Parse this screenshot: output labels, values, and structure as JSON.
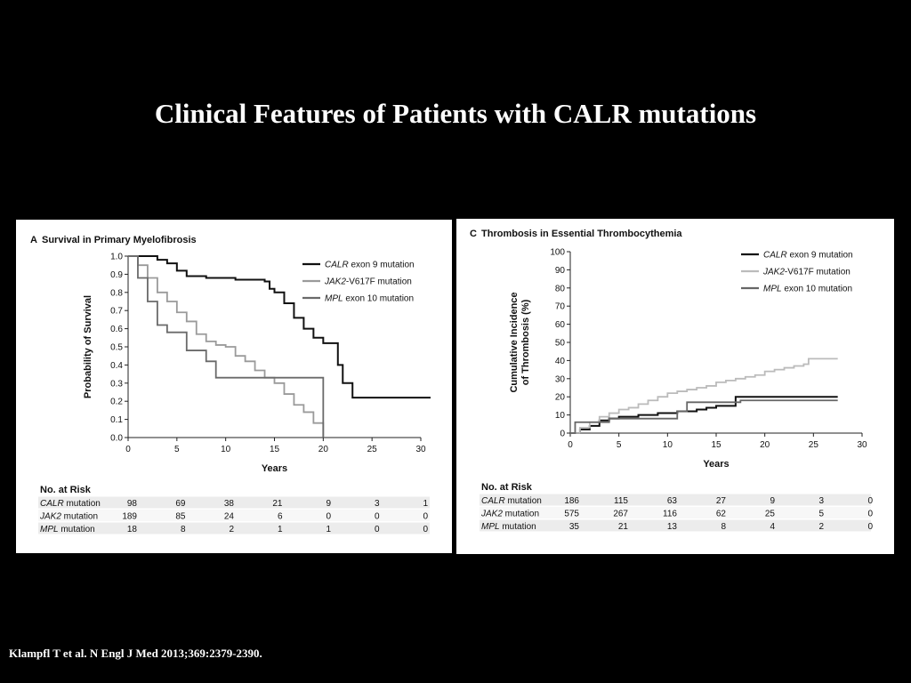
{
  "slide": {
    "title": "Clinical Features of Patients with CALR mutations",
    "citation": "Klampfl T et al. N Engl J Med 2013;369:2379-2390."
  },
  "chart_data": [
    {
      "type": "line",
      "panel_letter": "A",
      "title": "Survival in Primary Myelofibrosis",
      "xlabel": "Years",
      "ylabel": "Probability of Survival",
      "xlim": [
        0,
        30
      ],
      "ylim": [
        0,
        1.0
      ],
      "x_ticks": [
        "0",
        "5",
        "10",
        "15",
        "20",
        "25",
        "30"
      ],
      "y_ticks": [
        "0.0",
        "0.1",
        "0.2",
        "0.3",
        "0.4",
        "0.5",
        "0.6",
        "0.7",
        "0.8",
        "0.9",
        "1.0"
      ],
      "legend_position": "top-right",
      "series": [
        {
          "name_italic": "CALR",
          "name_rest": " exon 9 mutation",
          "color": "#111111",
          "points": [
            [
              0,
              1.0
            ],
            [
              2,
              1.0
            ],
            [
              3,
              0.98
            ],
            [
              4,
              0.96
            ],
            [
              5,
              0.92
            ],
            [
              6,
              0.89
            ],
            [
              8,
              0.88
            ],
            [
              10,
              0.88
            ],
            [
              11,
              0.87
            ],
            [
              14,
              0.86
            ],
            [
              14.5,
              0.82
            ],
            [
              15,
              0.8
            ],
            [
              16,
              0.74
            ],
            [
              17,
              0.66
            ],
            [
              18,
              0.6
            ],
            [
              19,
              0.55
            ],
            [
              20,
              0.52
            ],
            [
              21,
              0.52
            ],
            [
              21.5,
              0.4
            ],
            [
              22,
              0.3
            ],
            [
              23,
              0.22
            ],
            [
              31,
              0.22
            ]
          ]
        },
        {
          "name_italic": "JAK2",
          "name_rest": "-V617F mutation",
          "color": "#9a9a9a",
          "points": [
            [
              0,
              1.0
            ],
            [
              1,
              0.95
            ],
            [
              2,
              0.88
            ],
            [
              3,
              0.8
            ],
            [
              4,
              0.75
            ],
            [
              5,
              0.69
            ],
            [
              6,
              0.64
            ],
            [
              7,
              0.57
            ],
            [
              8,
              0.53
            ],
            [
              9,
              0.51
            ],
            [
              10,
              0.5
            ],
            [
              11,
              0.45
            ],
            [
              12,
              0.42
            ],
            [
              13,
              0.37
            ],
            [
              14,
              0.33
            ],
            [
              15,
              0.3
            ],
            [
              16,
              0.24
            ],
            [
              17,
              0.18
            ],
            [
              18,
              0.14
            ],
            [
              19,
              0.08
            ],
            [
              20,
              0.08
            ],
            [
              20,
              0.0
            ]
          ]
        },
        {
          "name_italic": "MPL",
          "name_rest": " exon 10 mutation",
          "color": "#6a6a6a",
          "points": [
            [
              0,
              1.0
            ],
            [
              1,
              0.88
            ],
            [
              2,
              0.75
            ],
            [
              3,
              0.62
            ],
            [
              4,
              0.58
            ],
            [
              6,
              0.48
            ],
            [
              8,
              0.42
            ],
            [
              9,
              0.33
            ],
            [
              12,
              0.33
            ],
            [
              20,
              0.33
            ],
            [
              20,
              0.0
            ]
          ]
        }
      ],
      "risk_table": {
        "header": "No. at Risk",
        "rows": [
          {
            "label_italic": "CALR",
            "label_rest": " mutation",
            "values": [
              "98",
              "69",
              "38",
              "21",
              "9",
              "3",
              "1"
            ]
          },
          {
            "label_italic": "JAK2",
            "label_rest": " mutation",
            "values": [
              "189",
              "85",
              "24",
              "6",
              "0",
              "0",
              "0"
            ]
          },
          {
            "label_italic": "MPL",
            "label_rest": " mutation",
            "values": [
              "18",
              "8",
              "2",
              "1",
              "1",
              "0",
              "0"
            ]
          }
        ]
      }
    },
    {
      "type": "line",
      "panel_letter": "C",
      "title": "Thrombosis in Essential Thrombocythemia",
      "xlabel": "Years",
      "ylabel_line1": "Cumulative Incidence",
      "ylabel_line2": "of Thrombosis (%)",
      "xlim": [
        0,
        30
      ],
      "ylim": [
        0,
        100
      ],
      "x_ticks": [
        "0",
        "5",
        "10",
        "15",
        "20",
        "25",
        "30"
      ],
      "y_ticks": [
        "0",
        "10",
        "20",
        "30",
        "40",
        "50",
        "60",
        "70",
        "80",
        "90",
        "100"
      ],
      "legend_position": "top-right",
      "series": [
        {
          "name_italic": "CALR",
          "name_rest": " exon 9 mutation",
          "color": "#111111",
          "points": [
            [
              0,
              0
            ],
            [
              1,
              2
            ],
            [
              2,
              4
            ],
            [
              3,
              7
            ],
            [
              4,
              8
            ],
            [
              5,
              9
            ],
            [
              6,
              9
            ],
            [
              7,
              10
            ],
            [
              8,
              10
            ],
            [
              9,
              11
            ],
            [
              10,
              11
            ],
            [
              11,
              12
            ],
            [
              12,
              12
            ],
            [
              13,
              13
            ],
            [
              14,
              14
            ],
            [
              15,
              15
            ],
            [
              16,
              15
            ],
            [
              17,
              20
            ],
            [
              20,
              20
            ],
            [
              27.5,
              20
            ]
          ]
        },
        {
          "name_italic": "JAK2",
          "name_rest": "-V617F mutation",
          "color": "#bbbbbb",
          "points": [
            [
              0,
              0
            ],
            [
              1,
              3
            ],
            [
              2,
              6
            ],
            [
              3,
              9
            ],
            [
              4,
              11
            ],
            [
              5,
              13
            ],
            [
              6,
              14
            ],
            [
              7,
              16
            ],
            [
              8,
              18
            ],
            [
              9,
              20
            ],
            [
              10,
              22
            ],
            [
              11,
              23
            ],
            [
              12,
              24
            ],
            [
              13,
              25
            ],
            [
              14,
              26
            ],
            [
              15,
              28
            ],
            [
              16,
              29
            ],
            [
              17,
              30
            ],
            [
              18,
              31
            ],
            [
              19,
              32
            ],
            [
              20,
              34
            ],
            [
              21,
              35
            ],
            [
              22,
              36
            ],
            [
              23,
              37
            ],
            [
              24,
              38
            ],
            [
              24.5,
              41
            ],
            [
              27.5,
              41
            ]
          ]
        },
        {
          "name_italic": "MPL",
          "name_rest": " exon 10 mutation",
          "color": "#666666",
          "points": [
            [
              0,
              0
            ],
            [
              0.5,
              6
            ],
            [
              3,
              6
            ],
            [
              4,
              8
            ],
            [
              10,
              8
            ],
            [
              11,
              12
            ],
            [
              12,
              17
            ],
            [
              17,
              17
            ],
            [
              17.5,
              18
            ],
            [
              27.5,
              18
            ]
          ]
        }
      ],
      "risk_table": {
        "header": "No. at Risk",
        "rows": [
          {
            "label_italic": "CALR",
            "label_rest": " mutation",
            "values": [
              "186",
              "115",
              "63",
              "27",
              "9",
              "3",
              "0"
            ]
          },
          {
            "label_italic": "JAK2",
            "label_rest": " mutation",
            "values": [
              "575",
              "267",
              "116",
              "62",
              "25",
              "5",
              "0"
            ]
          },
          {
            "label_italic": "MPL",
            "label_rest": " mutation",
            "values": [
              "35",
              "21",
              "13",
              "8",
              "4",
              "2",
              "0"
            ]
          }
        ]
      }
    }
  ]
}
